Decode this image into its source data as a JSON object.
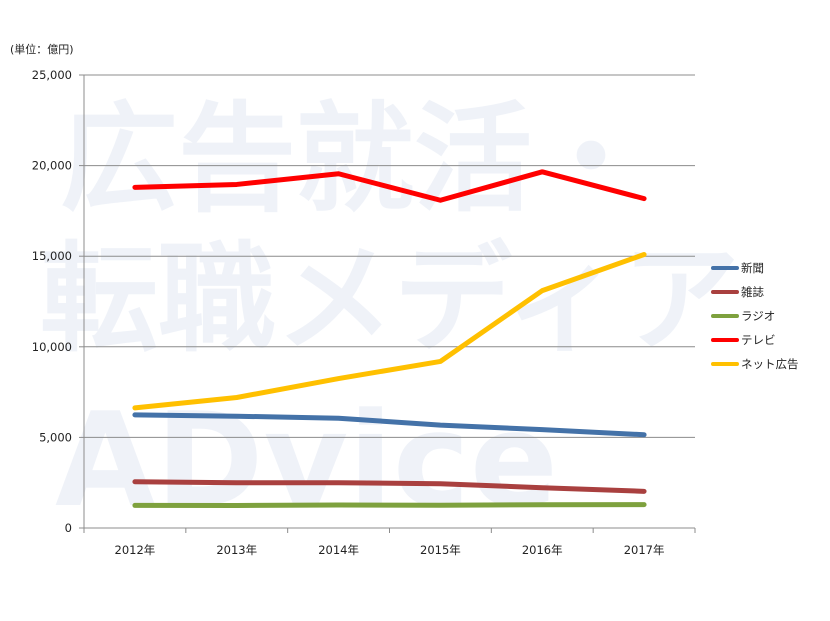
{
  "unit_label": "(単位：億円)",
  "watermark": {
    "line1": "広告就活・",
    "line2": "転職メディア",
    "line3": "ADvice"
  },
  "chart_data": {
    "type": "line",
    "x": [
      "2012年",
      "2013年",
      "2014年",
      "2015年",
      "2016年",
      "2017年"
    ],
    "ylim": [
      0,
      25000
    ],
    "yticks": [
      0,
      5000,
      10000,
      15000,
      20000,
      25000
    ],
    "ytick_labels": [
      "0",
      "5,000",
      "10,000",
      "15,000",
      "20,000",
      "25,000"
    ],
    "grid": true,
    "legend_position": "right",
    "series": [
      {
        "name": "新聞",
        "color": "#4472a8",
        "values": [
          6242,
          6170,
          6057,
          5679,
          5431,
          5147
        ]
      },
      {
        "name": "雑誌",
        "color": "#a9403f",
        "values": [
          2551,
          2499,
          2500,
          2443,
          2223,
          2023
        ]
      },
      {
        "name": "ラジオ",
        "color": "#7ea13e",
        "values": [
          1246,
          1243,
          1272,
          1254,
          1285,
          1290
        ]
      },
      {
        "name": "テレビ",
        "color": "#ff0000",
        "values": [
          18800,
          18960,
          19550,
          18088,
          19657,
          18178
        ]
      },
      {
        "name": "ネット広告",
        "color": "#ffc000",
        "values": [
          6629,
          7203,
          8245,
          9194,
          13100,
          15094
        ]
      }
    ]
  }
}
